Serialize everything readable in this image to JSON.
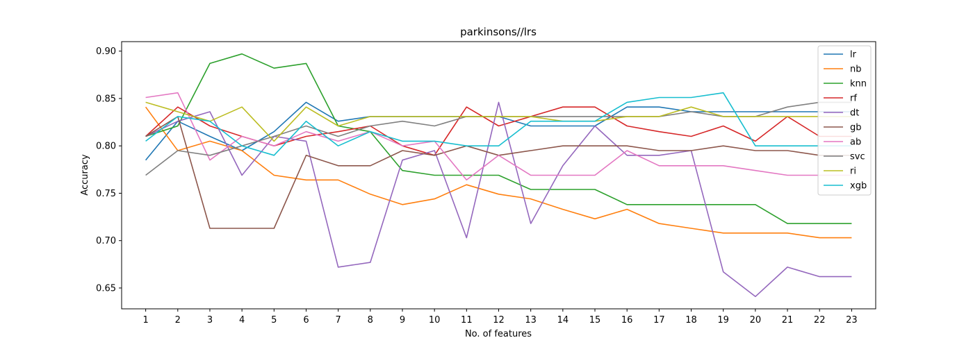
{
  "chart_data": {
    "type": "line",
    "title": "parkinsons//lrs",
    "xlabel": "No. of features",
    "ylabel": "Accuracy",
    "x": [
      1,
      2,
      3,
      4,
      5,
      6,
      7,
      8,
      9,
      10,
      11,
      12,
      13,
      14,
      15,
      16,
      17,
      18,
      19,
      20,
      21,
      22,
      23
    ],
    "xlim": [
      0.25,
      23.75
    ],
    "ylim": [
      0.628,
      0.91
    ],
    "yticks": [
      0.65,
      0.7,
      0.75,
      0.8,
      0.85,
      0.9
    ],
    "ytick_labels": [
      "0.65",
      "0.70",
      "0.75",
      "0.80",
      "0.85",
      "0.90"
    ],
    "grid": false,
    "legend_position": "top-right",
    "series": [
      {
        "name": "lr",
        "color": "#1f77b4",
        "values": [
          0.785,
          0.826,
          0.81,
          0.795,
          0.815,
          0.846,
          0.826,
          0.831,
          0.831,
          0.831,
          0.831,
          0.831,
          0.821,
          0.821,
          0.821,
          0.841,
          0.841,
          0.836,
          0.836,
          0.836,
          0.836,
          0.836,
          0.836
        ]
      },
      {
        "name": "nb",
        "color": "#ff7f0e",
        "values": [
          0.841,
          0.795,
          0.805,
          0.795,
          0.769,
          0.764,
          0.764,
          0.749,
          0.738,
          0.744,
          0.759,
          0.749,
          0.744,
          0.733,
          0.723,
          0.733,
          0.718,
          0.713,
          0.708,
          0.708,
          0.708,
          0.703,
          0.703
        ]
      },
      {
        "name": "knn",
        "color": "#2ca02c",
        "values": [
          0.81,
          0.821,
          0.887,
          0.897,
          0.882,
          0.887,
          0.821,
          0.815,
          0.774,
          0.769,
          0.769,
          0.769,
          0.754,
          0.754,
          0.754,
          0.738,
          0.738,
          0.738,
          0.738,
          0.738,
          0.718,
          0.718,
          0.718
        ]
      },
      {
        "name": "rf",
        "color": "#d62728",
        "values": [
          0.81,
          0.841,
          0.821,
          0.81,
          0.8,
          0.81,
          0.815,
          0.821,
          0.8,
          0.79,
          0.841,
          0.821,
          0.831,
          0.841,
          0.841,
          0.821,
          0.815,
          0.81,
          0.821,
          0.805,
          0.831,
          0.81,
          0.81
        ]
      },
      {
        "name": "dt",
        "color": "#9467bd",
        "values": [
          0.81,
          0.826,
          0.836,
          0.769,
          0.81,
          0.805,
          0.672,
          0.677,
          0.785,
          0.795,
          0.703,
          0.846,
          0.718,
          0.779,
          0.821,
          0.79,
          0.79,
          0.795,
          0.667,
          0.641,
          0.672,
          0.662,
          0.662
        ]
      },
      {
        "name": "gb",
        "color": "#8c564b",
        "values": [
          0.81,
          0.831,
          0.713,
          0.713,
          0.713,
          0.79,
          0.779,
          0.779,
          0.795,
          0.79,
          0.8,
          0.79,
          0.795,
          0.8,
          0.8,
          0.8,
          0.795,
          0.795,
          0.8,
          0.795,
          0.795,
          0.79,
          0.79
        ]
      },
      {
        "name": "ab",
        "color": "#e377c2",
        "values": [
          0.851,
          0.856,
          0.785,
          0.81,
          0.8,
          0.815,
          0.805,
          0.815,
          0.8,
          0.805,
          0.764,
          0.79,
          0.769,
          0.769,
          0.769,
          0.795,
          0.779,
          0.779,
          0.779,
          0.774,
          0.769,
          0.769,
          0.769
        ]
      },
      {
        "name": "svc",
        "color": "#7f7f7f",
        "values": [
          0.769,
          0.795,
          0.79,
          0.8,
          0.81,
          0.821,
          0.81,
          0.821,
          0.826,
          0.821,
          0.831,
          0.831,
          0.831,
          0.831,
          0.831,
          0.831,
          0.831,
          0.836,
          0.831,
          0.831,
          0.841,
          0.846,
          0.846
        ]
      },
      {
        "name": "ri",
        "color": "#bcbd22",
        "values": [
          0.846,
          0.836,
          0.826,
          0.841,
          0.805,
          0.841,
          0.821,
          0.831,
          0.831,
          0.831,
          0.831,
          0.831,
          0.831,
          0.826,
          0.826,
          0.831,
          0.831,
          0.841,
          0.831,
          0.831,
          0.831,
          0.831,
          0.831
        ]
      },
      {
        "name": "xgb",
        "color": "#17becf",
        "values": [
          0.805,
          0.831,
          0.826,
          0.8,
          0.79,
          0.826,
          0.8,
          0.815,
          0.805,
          0.805,
          0.8,
          0.8,
          0.826,
          0.826,
          0.826,
          0.846,
          0.851,
          0.851,
          0.856,
          0.8,
          0.8,
          0.8,
          0.8
        ]
      }
    ]
  }
}
